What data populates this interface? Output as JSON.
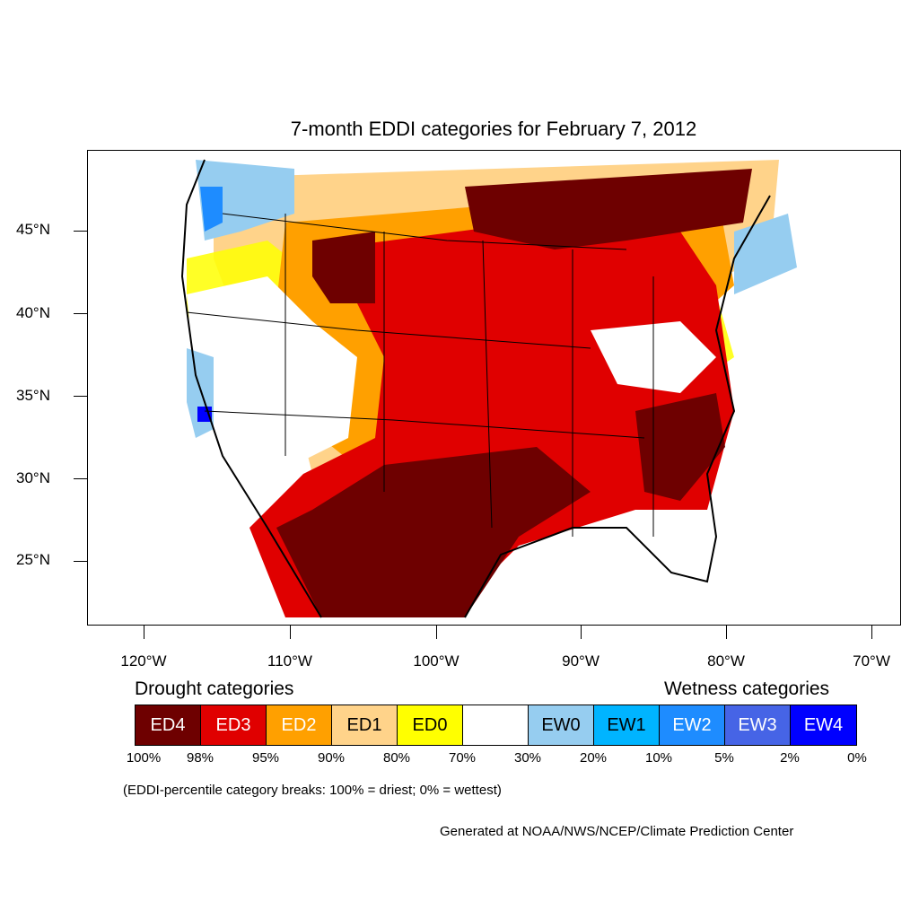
{
  "title": "7-month EDDI categories for February 7, 2012",
  "lat_labels": [
    "45°N",
    "40°N",
    "35°N",
    "30°N",
    "25°N"
  ],
  "lon_labels": [
    "120°W",
    "110°W",
    "100°W",
    "90°W",
    "80°W",
    "70°W"
  ],
  "legend": {
    "drought_title": "Drought categories",
    "wetness_title": "Wetness categories",
    "categories": [
      {
        "label": "ED4",
        "color": "#6e0000",
        "text_color": "#ffffff"
      },
      {
        "label": "ED3",
        "color": "#e00000",
        "text_color": "#ffffff"
      },
      {
        "label": "ED2",
        "color": "#ffa000",
        "text_color": "#ffffff"
      },
      {
        "label": "ED1",
        "color": "#ffd38a",
        "text_color": "#000000"
      },
      {
        "label": "ED0",
        "color": "#ffff00",
        "text_color": "#000000"
      },
      {
        "label": "",
        "color": "#ffffff",
        "text_color": "#000000"
      },
      {
        "label": "EW0",
        "color": "#96cdf0",
        "text_color": "#000000"
      },
      {
        "label": "EW1",
        "color": "#00b4ff",
        "text_color": "#000000"
      },
      {
        "label": "EW2",
        "color": "#1e8cff",
        "text_color": "#ffffff"
      },
      {
        "label": "EW3",
        "color": "#4664e6",
        "text_color": "#ffffff"
      },
      {
        "label": "EW4",
        "color": "#0000ff",
        "text_color": "#ffffff"
      }
    ],
    "percent_breaks": [
      "100%",
      "98%",
      "95%",
      "90%",
      "80%",
      "70%",
      "30%",
      "20%",
      "10%",
      "5%",
      "2%",
      "0%"
    ]
  },
  "note": "(EDDI-percentile category breaks: 100% = driest; 0% = wettest)",
  "credit": "Generated at NOAA/NWS/NCEP/Climate Prediction Center"
}
